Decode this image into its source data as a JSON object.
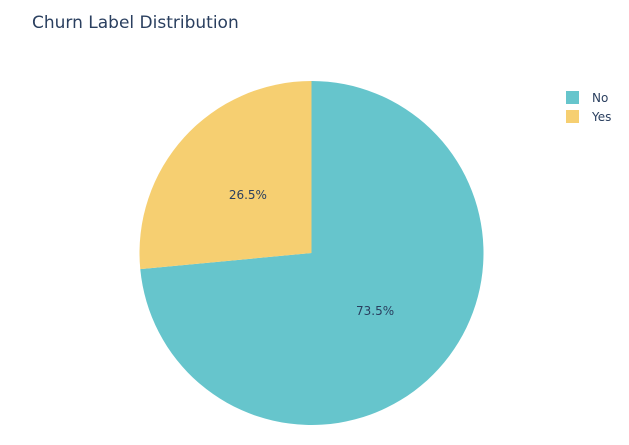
{
  "chart_data": {
    "type": "pie",
    "title": "Churn Label Distribution",
    "labels": [
      "No",
      "Yes"
    ],
    "values": [
      73.5,
      26.5
    ],
    "text_labels": [
      "73.5%",
      "26.5%"
    ],
    "colors": [
      "#66c5cc",
      "#f6cf71"
    ],
    "legend": "top-right",
    "direction": "clockwise",
    "start_angle": "12 o'clock"
  }
}
